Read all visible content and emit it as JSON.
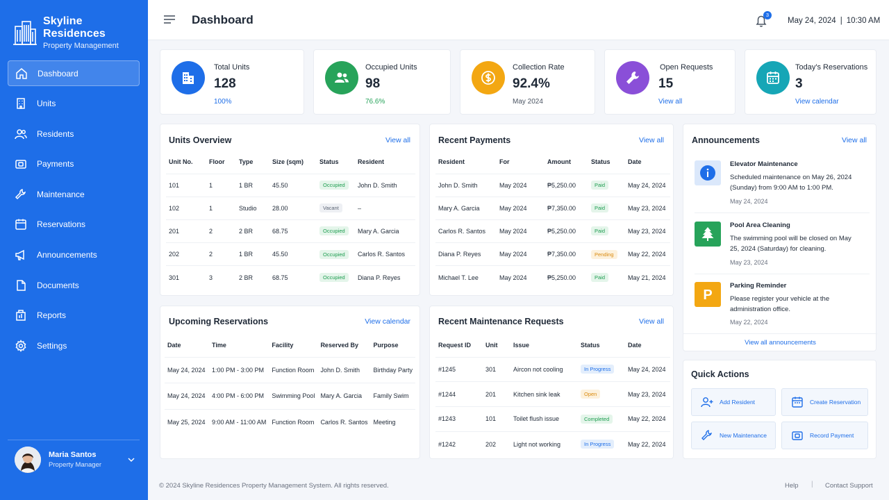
{
  "brand": {
    "name": "Skyline Residences",
    "subtitle": "Property Management"
  },
  "nav": [
    {
      "label": "Dashboard",
      "icon": "home-icon",
      "active": true
    },
    {
      "label": "Units",
      "icon": "building-icon"
    },
    {
      "label": "Residents",
      "icon": "users-icon"
    },
    {
      "label": "Payments",
      "icon": "wallet-icon"
    },
    {
      "label": "Maintenance",
      "icon": "wrench-icon"
    },
    {
      "label": "Reservations",
      "icon": "calendar-icon"
    },
    {
      "label": "Announcements",
      "icon": "megaphone-icon"
    },
    {
      "label": "Documents",
      "icon": "document-icon"
    },
    {
      "label": "Reports",
      "icon": "reports-icon"
    },
    {
      "label": "Settings",
      "icon": "gear-icon"
    }
  ],
  "user": {
    "name": "Maria Santos",
    "role": "Property Manager"
  },
  "header": {
    "title": "Dashboard",
    "notifications": "3",
    "date": "May 24, 2024",
    "separator": "|",
    "time": "10:30 AM"
  },
  "stats": [
    {
      "label": "Total Units",
      "value": "128",
      "sub": "100%",
      "color": "#1e6ee8"
    },
    {
      "label": "Occupied Units",
      "value": "98",
      "sub": "76.6%",
      "color": "#27a35a"
    },
    {
      "label": "Collection Rate",
      "value": "92.4%",
      "sub": "May 2024",
      "color": "#f3a712"
    },
    {
      "label": "Open Requests",
      "value": "15",
      "sub": "View all",
      "color": "#8a4fd8"
    },
    {
      "label": "Today's Reservations",
      "value": "3",
      "sub": "View calendar",
      "color": "#16a6b6"
    }
  ],
  "units_overview": {
    "title": "Units Overview",
    "link": "View all",
    "columns": [
      "Unit No.",
      "Floor",
      "Type",
      "Size (sqm)",
      "Status",
      "Resident"
    ],
    "rows": [
      [
        "101",
        "1",
        "1 BR",
        "45.50",
        "Occupied",
        "John D. Smith"
      ],
      [
        "102",
        "1",
        "Studio",
        "28.00",
        "Vacant",
        "–"
      ],
      [
        "201",
        "2",
        "2 BR",
        "68.75",
        "Occupied",
        "Mary A. Garcia"
      ],
      [
        "202",
        "2",
        "1 BR",
        "45.50",
        "Occupied",
        "Carlos R. Santos"
      ],
      [
        "301",
        "3",
        "2 BR",
        "68.75",
        "Occupied",
        "Diana P. Reyes"
      ]
    ]
  },
  "recent_payments": {
    "title": "Recent Payments",
    "link": "View all",
    "columns": [
      "Resident",
      "For",
      "Amount",
      "Status",
      "Date"
    ],
    "rows": [
      [
        "John D. Smith",
        "May 2024",
        "₱5,250.00",
        "Paid",
        "May 24, 2024"
      ],
      [
        "Mary A. Garcia",
        "May 2024",
        "₱7,350.00",
        "Paid",
        "May 23, 2024"
      ],
      [
        "Carlos R. Santos",
        "May 2024",
        "₱5,250.00",
        "Paid",
        "May 23, 2024"
      ],
      [
        "Diana P. Reyes",
        "May 2024",
        "₱7,350.00",
        "Pending",
        "May 22, 2024"
      ],
      [
        "Michael T. Lee",
        "May 2024",
        "₱5,250.00",
        "Paid",
        "May 21, 2024"
      ]
    ]
  },
  "announcements": {
    "title": "Announcements",
    "link": "View all",
    "footer_link": "View all announcements",
    "items": [
      {
        "title": "Elevator Maintenance",
        "text": "Scheduled maintenance on May 26, 2024 (Sunday) from 9:00 AM to 1:00 PM.",
        "date": "May 24, 2024"
      },
      {
        "title": "Pool Area Cleaning",
        "text": "The swimming pool will be closed on May 25, 2024 (Saturday) for cleaning.",
        "date": "May 23, 2024"
      },
      {
        "title": "Parking Reminder",
        "text": "Please register your vehicle at the administration office.",
        "date": "May 22, 2024"
      }
    ]
  },
  "upcoming_reservations": {
    "title": "Upcoming Reservations",
    "link": "View calendar",
    "columns": [
      "Date",
      "Time",
      "Facility",
      "Reserved By",
      "Purpose"
    ],
    "rows": [
      [
        "May 24, 2024",
        "1:00 PM - 3:00 PM",
        "Function Room",
        "John D. Smith",
        "Birthday Party"
      ],
      [
        "May 24, 2024",
        "4:00 PM - 6:00 PM",
        "Swimming Pool",
        "Mary A. Garcia",
        "Family Swim"
      ],
      [
        "May 25, 2024",
        "9:00 AM - 11:00 AM",
        "Function Room",
        "Carlos R. Santos",
        "Meeting"
      ]
    ]
  },
  "maintenance": {
    "title": "Recent Maintenance Requests",
    "link": "View all",
    "columns": [
      "Request ID",
      "Unit",
      "Issue",
      "Status",
      "Date"
    ],
    "rows": [
      [
        "#1245",
        "301",
        "Aircon not cooling",
        "In Progress",
        "May 24, 2024"
      ],
      [
        "#1244",
        "201",
        "Kitchen sink leak",
        "Open",
        "May 23, 2024"
      ],
      [
        "#1243",
        "101",
        "Toilet flush issue",
        "Completed",
        "May 22, 2024"
      ],
      [
        "#1242",
        "202",
        "Light not working",
        "In Progress",
        "May 22, 2024"
      ]
    ]
  },
  "quick_actions": {
    "title": "Quick Actions",
    "items": [
      {
        "label": "Add Resident",
        "icon": "add-user-icon"
      },
      {
        "label": "Create Reservation",
        "icon": "calendar-icon"
      },
      {
        "label": "New Maintenance",
        "icon": "wrench-icon"
      },
      {
        "label": "Record Payment",
        "icon": "wallet-icon"
      }
    ]
  },
  "footer": {
    "copyright": "© 2024 Skyline Residences Property Management System. All rights reserved.",
    "help": "Help",
    "separator": "|",
    "support": "Contact Support"
  }
}
